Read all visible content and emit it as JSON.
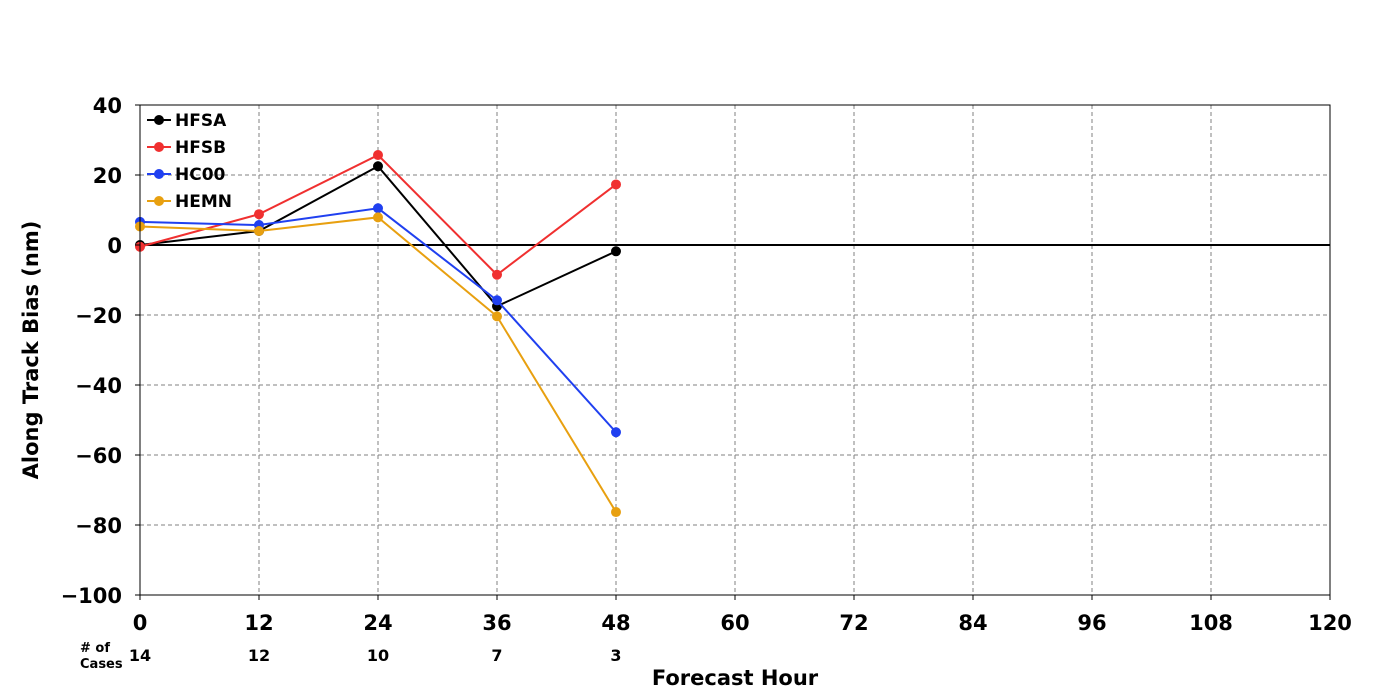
{
  "chart_data": {
    "type": "line",
    "title": "",
    "xlabel": "Forecast Hour",
    "ylabel": "Along Track Bias (nm)",
    "xlim": [
      0,
      120
    ],
    "ylim": [
      -100,
      40
    ],
    "xticks": [
      0,
      12,
      24,
      36,
      48,
      60,
      72,
      84,
      96,
      108,
      120
    ],
    "yticks": [
      40,
      20,
      0,
      -20,
      -40,
      -60,
      -80,
      -100
    ],
    "ytick_labels": [
      "40",
      "20",
      "0",
      "−20",
      "−40",
      "−60",
      "−80",
      "−100"
    ],
    "grid": true,
    "zero_line": true,
    "legend_position": "top-left",
    "cases_label": [
      "# of",
      "Cases"
    ],
    "cases": [
      {
        "x": 0,
        "count": "14"
      },
      {
        "x": 12,
        "count": "12"
      },
      {
        "x": 24,
        "count": "10"
      },
      {
        "x": 36,
        "count": "7"
      },
      {
        "x": 48,
        "count": "3"
      }
    ],
    "series": [
      {
        "name": "HFSA",
        "color": "#000000",
        "x": [
          0,
          12,
          24,
          36,
          48
        ],
        "values": [
          0,
          4,
          22.5,
          -17.5,
          -1.8
        ]
      },
      {
        "name": "HFSB",
        "color": "#f03030",
        "x": [
          0,
          12,
          24,
          36,
          48
        ],
        "values": [
          -0.5,
          8.8,
          25.7,
          -8.5,
          17.3
        ]
      },
      {
        "name": "HC00",
        "color": "#2040f0",
        "x": [
          0,
          12,
          24,
          36,
          48
        ],
        "values": [
          6.6,
          5.7,
          10.5,
          -15.8,
          -53.5
        ]
      },
      {
        "name": "HEMN",
        "color": "#e8a010",
        "x": [
          0,
          12,
          24,
          36,
          48
        ],
        "values": [
          5.3,
          4,
          7.9,
          -20.4,
          -76.3
        ]
      }
    ]
  }
}
